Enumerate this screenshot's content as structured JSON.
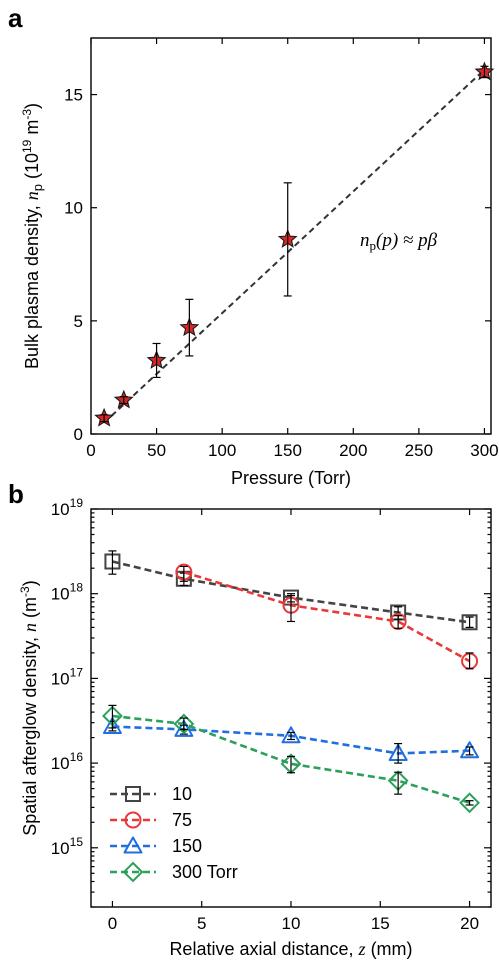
{
  "chart_data": [
    {
      "type": "scatter",
      "panel_label": "a",
      "xlabel": "Pressure (Torr)",
      "ylabel": "Bulk plasma density, n_p (10^19 m^-3)",
      "ylabel_parts": {
        "pre": "Bulk plasma density, ",
        "var": "n",
        "sub": "p",
        "unit_pre": " (10",
        "unit_exp": "19",
        "unit_mid": " m",
        "unit_exp2": "-3",
        "unit_post": ")"
      },
      "xlim": [
        0,
        305
      ],
      "ylim": [
        0,
        17.5
      ],
      "xticks": [
        0,
        50,
        100,
        150,
        200,
        250,
        300
      ],
      "yticks": [
        0,
        5,
        10,
        15
      ],
      "grid": false,
      "annotation": "n_p(p) ≈ pβ",
      "annotation_parts": {
        "var": "n",
        "sub": "p",
        "rest": "(p) ≈ pβ"
      },
      "series": [
        {
          "marker": "star",
          "color": "#d62728",
          "x": [
            10,
            25,
            50,
            75,
            150,
            300
          ],
          "y": [
            0.7,
            1.5,
            3.25,
            4.7,
            8.6,
            16.0
          ],
          "yerr": [
            0.15,
            0.15,
            0.75,
            1.25,
            2.5,
            0.25
          ]
        }
      ],
      "fit_line": {
        "style": "dashed",
        "color": "#333333",
        "x": [
          10,
          300
        ],
        "y": [
          0.5,
          16.1
        ]
      }
    },
    {
      "type": "line",
      "panel_label": "b",
      "xlabel": "Relative axial distance, z (mm)",
      "xlabel_parts": {
        "pre": "Relative axial distance, ",
        "var": "z",
        "post": " (mm)"
      },
      "ylabel": "Spatial afterglow density, n (m^-3)",
      "ylabel_parts": {
        "pre": "Spatial afterglow density, ",
        "var": "n",
        "unit_pre": " (m",
        "unit_exp": "-3",
        "unit_post": ")"
      },
      "xlim": [
        -1.2,
        21.2
      ],
      "ylim": [
        200000000000000.0,
        1e+19
      ],
      "yscale": "log",
      "xticks": [
        0,
        5,
        10,
        15,
        20
      ],
      "yticks": [
        1000000000000000.0,
        1e+16,
        1e+17,
        1e+18,
        1e+19
      ],
      "ytick_exponents": [
        "15",
        "16",
        "17",
        "18",
        "19"
      ],
      "grid": false,
      "legend_position": "bottom-left",
      "series": [
        {
          "name": "10",
          "marker": "square",
          "color": "#444444",
          "x": [
            0,
            4,
            10,
            16,
            20
          ],
          "y": [
            2.4e+18,
            1.5e+18,
            9e+17,
            6e+17,
            4.6e+17
          ],
          "ylo": [
            1.7e+18,
            1.25e+18,
            8e+17,
            5e+17,
            4e+17
          ],
          "yhi": [
            3.2e+18,
            1.75e+18,
            1e+18,
            7e+17,
            5.3e+17
          ]
        },
        {
          "name": "75",
          "marker": "circle",
          "color": "#e8393a",
          "x": [
            4,
            10,
            16,
            20
          ],
          "y": [
            1.8e+18,
            7.3e+17,
            4.7e+17,
            1.6e+17
          ],
          "ylo": [
            1.4e+18,
            4.7e+17,
            3.9e+17,
            1.3e+17
          ],
          "yhi": [
            2.1e+18,
            9.5e+17,
            5.5e+17,
            2e+17
          ]
        },
        {
          "name": "150",
          "marker": "triangle",
          "color": "#1f6fe0",
          "x": [
            0,
            4,
            10,
            16,
            20
          ],
          "y": [
            2.7e+16,
            2.5e+16,
            2.1e+16,
            1.3e+16,
            1.4e+16
          ],
          "ylo": [
            2.4e+16,
            2.2e+16,
            1.9e+16,
            1e+16,
            1.25e+16
          ],
          "yhi": [
            3.1e+16,
            2.8e+16,
            2.3e+16,
            1.7e+16,
            1.55e+16
          ]
        },
        {
          "name": "300 Torr",
          "marker": "diamond",
          "color": "#2ca05a",
          "x": [
            0,
            4,
            10,
            16,
            20
          ],
          "y": [
            3.6e+16,
            2.9e+16,
            9800000000000000.0,
            6200000000000000.0,
            3400000000000000.0
          ],
          "ylo": [
            2.6e+16,
            2.5e+16,
            7700000000000000.0,
            4300000000000000.0,
            3200000000000000.0
          ],
          "yhi": [
            4.8e+16,
            3.4e+16,
            1.2e+16,
            7800000000000000.0,
            3600000000000000.0
          ]
        }
      ]
    }
  ]
}
